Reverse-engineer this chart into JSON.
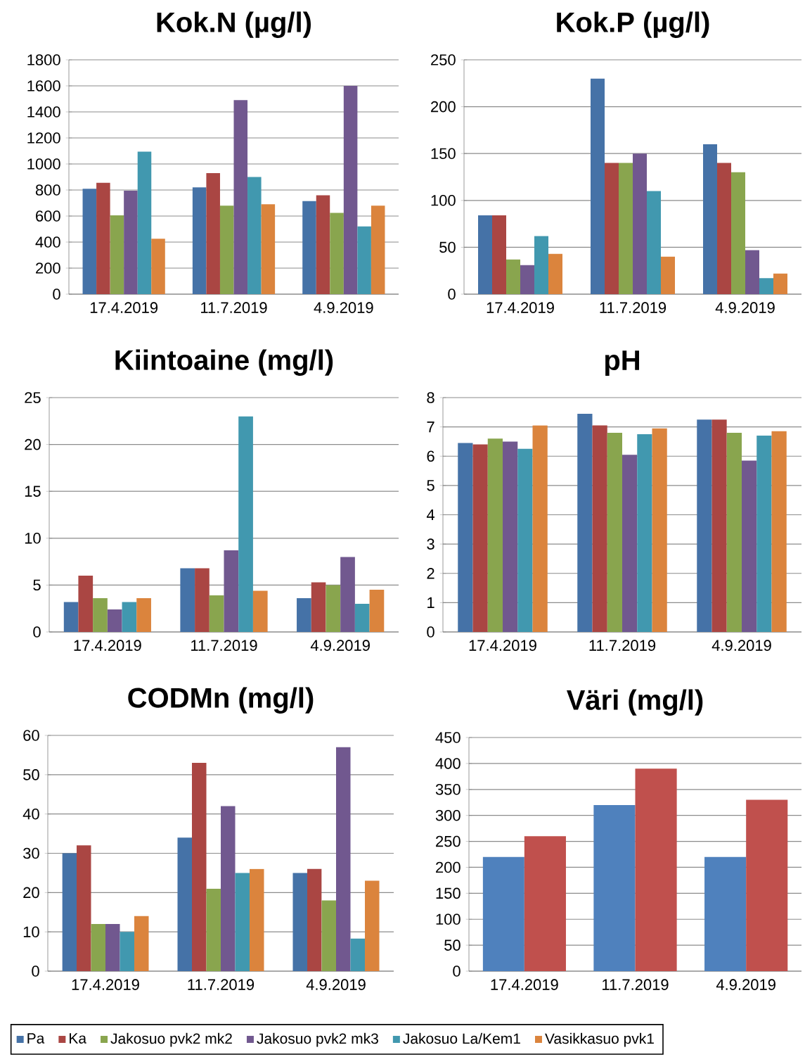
{
  "chart_data": [
    {
      "type": "bar",
      "title": "Kok.N (µg/l)",
      "categories": [
        "17.4.2019",
        "11.7.2019",
        "4.9.2019"
      ],
      "ylim": [
        0,
        1800
      ],
      "yticks": [
        0,
        200,
        400,
        600,
        800,
        1000,
        1200,
        1400,
        1600,
        1800
      ],
      "grid": "y",
      "series": [
        {
          "color": "#4572a7",
          "values": [
            810,
            820,
            715
          ]
        },
        {
          "color": "#aa4643",
          "values": [
            855,
            930,
            760
          ]
        },
        {
          "color": "#89a54e",
          "values": [
            605,
            680,
            625
          ]
        },
        {
          "color": "#71588f",
          "values": [
            795,
            1490,
            1600
          ]
        },
        {
          "color": "#4198af",
          "values": [
            1095,
            900,
            520
          ]
        },
        {
          "color": "#db843d",
          "values": [
            425,
            690,
            680
          ]
        }
      ]
    },
    {
      "type": "bar",
      "title": "Kok.P (µg/l)",
      "categories": [
        "17.4.2019",
        "11.7.2019",
        "4.9.2019"
      ],
      "ylim": [
        0,
        250
      ],
      "yticks": [
        0,
        50,
        100,
        150,
        200,
        250
      ],
      "grid": "y",
      "series": [
        {
          "color": "#4572a7",
          "values": [
            84,
            230,
            160
          ]
        },
        {
          "color": "#aa4643",
          "values": [
            84,
            140,
            140
          ]
        },
        {
          "color": "#89a54e",
          "values": [
            37,
            140,
            130
          ]
        },
        {
          "color": "#71588f",
          "values": [
            31,
            150,
            47
          ]
        },
        {
          "color": "#4198af",
          "values": [
            62,
            110,
            17
          ]
        },
        {
          "color": "#db843d",
          "values": [
            43,
            40,
            22
          ]
        }
      ]
    },
    {
      "type": "bar",
      "title": "Kiintoaine  (mg/l)",
      "categories": [
        "17.4.2019",
        "11.7.2019",
        "4.9.2019"
      ],
      "ylim": [
        0,
        25
      ],
      "yticks": [
        0,
        5,
        10,
        15,
        20,
        25
      ],
      "grid": "y",
      "series": [
        {
          "color": "#4572a7",
          "values": [
            3.2,
            6.8,
            3.6
          ]
        },
        {
          "color": "#aa4643",
          "values": [
            6.0,
            6.8,
            5.3
          ]
        },
        {
          "color": "#89a54e",
          "values": [
            3.6,
            3.9,
            5.0
          ]
        },
        {
          "color": "#71588f",
          "values": [
            2.4,
            8.7,
            8.0
          ]
        },
        {
          "color": "#4198af",
          "values": [
            3.2,
            23,
            3.0
          ]
        },
        {
          "color": "#db843d",
          "values": [
            3.6,
            4.4,
            4.5
          ]
        }
      ]
    },
    {
      "type": "bar",
      "title": "pH",
      "categories": [
        "17.4.2019",
        "11.7.2019",
        "4.9.2019"
      ],
      "ylim": [
        0,
        8
      ],
      "yticks": [
        0,
        1,
        2,
        3,
        4,
        5,
        6,
        7,
        8
      ],
      "grid": "y",
      "series": [
        {
          "color": "#4572a7",
          "values": [
            6.45,
            7.45,
            7.25
          ]
        },
        {
          "color": "#aa4643",
          "values": [
            6.4,
            7.05,
            7.25
          ]
        },
        {
          "color": "#89a54e",
          "values": [
            6.6,
            6.8,
            6.8
          ]
        },
        {
          "color": "#71588f",
          "values": [
            6.5,
            6.05,
            5.85
          ]
        },
        {
          "color": "#4198af",
          "values": [
            6.25,
            6.75,
            6.7
          ]
        },
        {
          "color": "#db843d",
          "values": [
            7.05,
            6.95,
            6.85
          ]
        }
      ]
    },
    {
      "type": "bar",
      "title": "CODMn (mg/l)",
      "categories": [
        "17.4.2019",
        "11.7.2019",
        "4.9.2019"
      ],
      "ylim": [
        0,
        60
      ],
      "yticks": [
        0,
        10,
        20,
        30,
        40,
        50,
        60
      ],
      "grid": "y",
      "legend": "bottom",
      "series": [
        {
          "name": "Pa",
          "color": "#4572a7",
          "values": [
            30,
            34,
            25
          ]
        },
        {
          "name": "Ka",
          "color": "#aa4643",
          "values": [
            32,
            53,
            26
          ]
        },
        {
          "name": "Jakosuo pvk2 mk2",
          "color": "#89a54e",
          "values": [
            12,
            21,
            18
          ]
        },
        {
          "name": "Jakosuo pvk2 mk3",
          "color": "#71588f",
          "values": [
            12,
            42,
            57
          ]
        },
        {
          "name": "Jakosuo La/Kem1",
          "color": "#4198af",
          "values": [
            10,
            25,
            8.3
          ]
        },
        {
          "name": "Vasikkasuo pvk1",
          "color": "#db843d",
          "values": [
            14,
            26,
            23
          ]
        }
      ]
    },
    {
      "type": "bar",
      "title": "Väri (mg/l)",
      "categories": [
        "17.4.2019",
        "11.7.2019",
        "4.9.2019"
      ],
      "ylim": [
        0,
        450
      ],
      "yticks": [
        0,
        50,
        100,
        150,
        200,
        250,
        300,
        350,
        400,
        450
      ],
      "grid": "y",
      "series": [
        {
          "color": "#4f81bd",
          "values": [
            220,
            320,
            220
          ]
        },
        {
          "color": "#c0504d",
          "values": [
            260,
            390,
            330
          ]
        }
      ]
    }
  ]
}
